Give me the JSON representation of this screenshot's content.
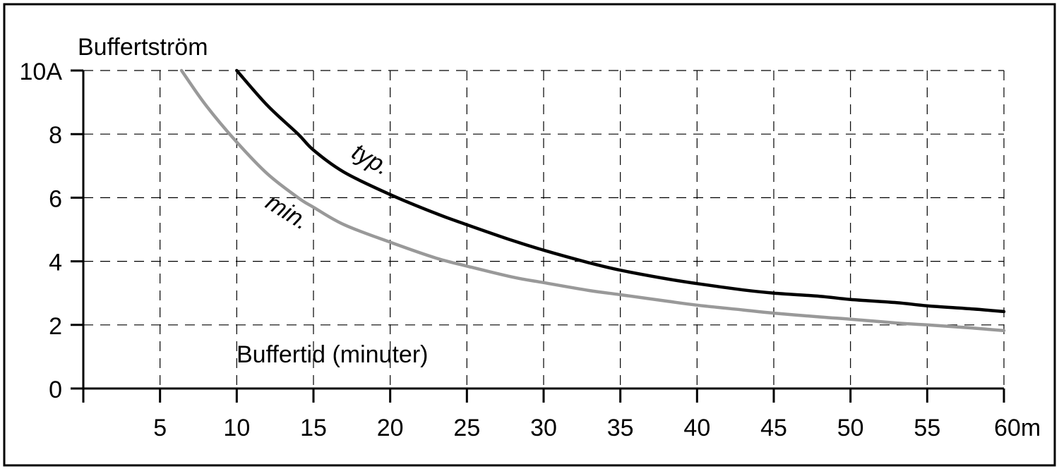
{
  "chart_data": {
    "type": "line",
    "ylabel": "Buffertström",
    "xlabel": "Buffertid (minuter)",
    "xlim": [
      0,
      60
    ],
    "ylim": [
      0,
      10
    ],
    "x_ticks": [
      {
        "value": 5,
        "label": "5"
      },
      {
        "value": 10,
        "label": "10"
      },
      {
        "value": 15,
        "label": "15"
      },
      {
        "value": 20,
        "label": "20"
      },
      {
        "value": 25,
        "label": "25"
      },
      {
        "value": 30,
        "label": "30"
      },
      {
        "value": 35,
        "label": "35"
      },
      {
        "value": 40,
        "label": "40"
      },
      {
        "value": 45,
        "label": "45"
      },
      {
        "value": 50,
        "label": "50"
      },
      {
        "value": 55,
        "label": "55"
      },
      {
        "value": 60,
        "label": "60m"
      }
    ],
    "y_ticks": [
      {
        "value": 0,
        "label": "0"
      },
      {
        "value": 2,
        "label": "2"
      },
      {
        "value": 4,
        "label": "4"
      },
      {
        "value": 6,
        "label": "6"
      },
      {
        "value": 8,
        "label": "8"
      },
      {
        "value": 10,
        "label": "10A"
      }
    ],
    "grid": true,
    "series": [
      {
        "name": "typ.",
        "label": "typ.",
        "color": "#000000",
        "x": [
          10,
          12,
          14,
          15,
          17,
          20,
          23,
          25,
          28,
          30,
          33,
          35,
          38,
          40,
          43,
          45,
          48,
          50,
          53,
          55,
          58,
          60
        ],
        "y": [
          10.0,
          8.9,
          8.0,
          7.5,
          6.8,
          6.1,
          5.5,
          5.15,
          4.65,
          4.35,
          3.95,
          3.72,
          3.45,
          3.3,
          3.1,
          3.0,
          2.9,
          2.8,
          2.7,
          2.6,
          2.5,
          2.42
        ]
      },
      {
        "name": "min.",
        "label": "min.",
        "color": "#999999",
        "x": [
          6.4,
          8,
          10,
          12,
          14,
          15,
          17,
          20,
          23,
          25,
          28,
          30,
          33,
          35,
          38,
          40,
          43,
          45,
          48,
          50,
          53,
          55,
          58,
          60
        ],
        "y": [
          10.0,
          8.9,
          7.75,
          6.75,
          6.0,
          5.7,
          5.15,
          4.6,
          4.1,
          3.85,
          3.5,
          3.33,
          3.08,
          2.95,
          2.75,
          2.62,
          2.47,
          2.37,
          2.25,
          2.18,
          2.06,
          2.0,
          1.9,
          1.82
        ]
      }
    ]
  }
}
